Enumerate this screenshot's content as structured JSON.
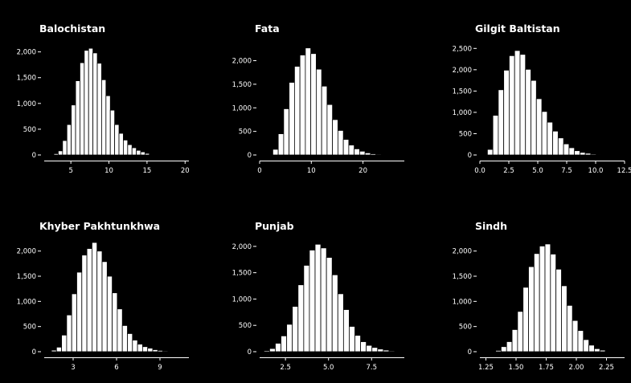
{
  "colors": {
    "background": "#000000",
    "bar_fill": "#ffffff",
    "bar_edge": "#000000",
    "text": "#ffffff"
  },
  "chart_data": [
    {
      "type": "bar",
      "title": "Balochistan",
      "xlim": [
        1.5,
        20.5
      ],
      "ylim": [
        0,
        2150
      ],
      "x_ticks": [
        5,
        10,
        15,
        20
      ],
      "x_tick_labels": [
        "5",
        "10",
        "15",
        "20"
      ],
      "y_ticks": [
        0,
        500,
        1000,
        1500,
        2000
      ],
      "y_tick_labels": [
        "0",
        "500",
        "1,000",
        "1,500",
        "2,000"
      ],
      "bin_start": 2.2,
      "bin_width": 0.57,
      "values": [
        10,
        25,
        80,
        280,
        590,
        970,
        1440,
        1790,
        2030,
        2070,
        1980,
        1780,
        1460,
        1150,
        870,
        590,
        420,
        290,
        200,
        140,
        90,
        60,
        30,
        10
      ]
    },
    {
      "type": "bar",
      "title": "Fata",
      "xlim": [
        0,
        28
      ],
      "ylim": [
        0,
        2350
      ],
      "x_ticks": [
        0,
        10,
        20
      ],
      "x_tick_labels": [
        "0",
        "10",
        "20"
      ],
      "y_ticks": [
        0,
        500,
        1000,
        1500,
        2000
      ],
      "y_tick_labels": [
        "0",
        "500",
        "1,000",
        "1,500",
        "2,000"
      ],
      "bin_start": 1.5,
      "bin_width": 1.05,
      "values": [
        10,
        120,
        450,
        980,
        1540,
        1880,
        2120,
        2270,
        2150,
        1820,
        1460,
        1070,
        750,
        520,
        330,
        210,
        130,
        80,
        45,
        25,
        15,
        8,
        5,
        2
      ]
    },
    {
      "type": "bar",
      "title": "Gilgit Baltistan",
      "xlim": [
        0,
        12.5
      ],
      "ylim": [
        0,
        2600
      ],
      "x_ticks": [
        0,
        2.5,
        5,
        7.5,
        10,
        12.5
      ],
      "x_tick_labels": [
        "0.0",
        "2.5",
        "5.0",
        "7.5",
        "10.0",
        "12.5"
      ],
      "y_ticks": [
        0,
        500,
        1000,
        1500,
        2000,
        2500
      ],
      "y_tick_labels": [
        "0",
        "500",
        "1,000",
        "1,500",
        "2,000",
        "2,500"
      ],
      "bin_start": 0.65,
      "bin_width": 0.47,
      "values": [
        130,
        930,
        1530,
        1990,
        2330,
        2450,
        2360,
        2010,
        1750,
        1320,
        1020,
        770,
        560,
        400,
        260,
        170,
        100,
        60,
        40,
        20,
        10,
        8,
        6,
        4
      ]
    },
    {
      "type": "bar",
      "title": "Khyber Pakhtunkhwa",
      "xlim": [
        1,
        11
      ],
      "ylim": [
        0,
        2250
      ],
      "x_ticks": [
        3,
        6,
        9
      ],
      "x_tick_labels": [
        "3",
        "6",
        "9"
      ],
      "y_ticks": [
        0,
        500,
        1000,
        1500,
        2000
      ],
      "y_tick_labels": [
        "0",
        "500",
        "1,000",
        "1,500",
        "2,000"
      ],
      "bin_start": 1.5,
      "bin_width": 0.35,
      "values": [
        30,
        90,
        330,
        730,
        1150,
        1580,
        1920,
        2050,
        2170,
        2000,
        1790,
        1500,
        1170,
        850,
        520,
        360,
        230,
        150,
        100,
        70,
        40,
        25,
        15,
        10
      ]
    },
    {
      "type": "bar",
      "title": "Punjab",
      "xlim": [
        1,
        9.4
      ],
      "ylim": [
        0,
        2150
      ],
      "x_ticks": [
        2.5,
        5,
        7.5
      ],
      "x_tick_labels": [
        "2.5",
        "5.0",
        "7.5"
      ],
      "y_ticks": [
        0,
        500,
        1000,
        1500,
        2000
      ],
      "y_tick_labels": [
        "0",
        "500",
        "1,000",
        "1,500",
        "2,000"
      ],
      "bin_start": 1.25,
      "bin_width": 0.33,
      "values": [
        20,
        60,
        160,
        300,
        520,
        860,
        1270,
        1640,
        1930,
        2040,
        1970,
        1790,
        1460,
        1100,
        800,
        480,
        310,
        190,
        120,
        80,
        50,
        30,
        15,
        8
      ]
    },
    {
      "type": "bar",
      "title": "Sindh",
      "xlim": [
        1.2,
        2.4
      ],
      "ylim": [
        0,
        2250
      ],
      "x_ticks": [
        1.25,
        1.5,
        1.75,
        2.0,
        2.25
      ],
      "x_tick_labels": [
        "1.25",
        "1.50",
        "1.75",
        "2.00",
        "2.25"
      ],
      "y_ticks": [
        0,
        500,
        1000,
        1500,
        2000
      ],
      "y_tick_labels": [
        "0",
        "500",
        "1,000",
        "1,500",
        "2,000"
      ],
      "bin_start": 1.285,
      "bin_width": 0.0455,
      "values": [
        10,
        25,
        100,
        200,
        440,
        800,
        1280,
        1690,
        1950,
        2100,
        2140,
        1940,
        1640,
        1310,
        920,
        620,
        420,
        240,
        130,
        60,
        30,
        10,
        5,
        2
      ]
    }
  ]
}
